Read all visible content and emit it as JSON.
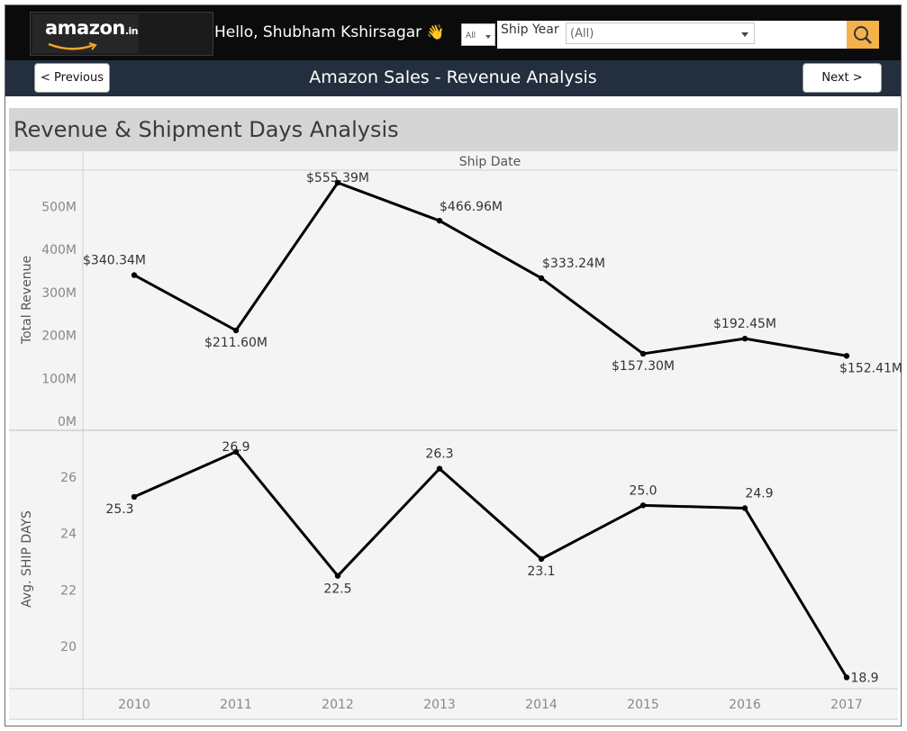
{
  "header": {
    "logo_text": "amazon",
    "logo_tld": ".in",
    "greeting": "Hello,  Shubham Kshirsagar",
    "greeting_emoji": "👋",
    "filter_all": "All",
    "ship_year_label": "Ship Year",
    "ship_year_value": "(All)",
    "search_icon": "magnifier-icon"
  },
  "nav": {
    "prev_label": "< Previous",
    "title": "Amazon Sales  - Revenue Analysis",
    "next_label": "Next >"
  },
  "colors": {
    "top_bar": "#0b0b0b",
    "nav_bar": "#232f3e",
    "search_button": "#f5b24a",
    "line": "#000000"
  },
  "dashboard": {
    "title": "Revenue & Shipment Days Analysis"
  },
  "chart_data": {
    "type": "line",
    "column_header": "Ship Date",
    "x": [
      "2010",
      "2011",
      "2012",
      "2013",
      "2014",
      "2015",
      "2016",
      "2017"
    ],
    "panels": [
      {
        "ylabel": "Total Revenue",
        "ylim": [
          0,
          570
        ],
        "yticks": [
          0,
          100,
          200,
          300,
          400,
          500
        ],
        "ytick_labels": [
          "0M",
          "100M",
          "200M",
          "300M",
          "400M",
          "500M"
        ],
        "values": [
          340.34,
          211.6,
          555.39,
          466.96,
          333.24,
          157.3,
          192.45,
          152.41
        ],
        "data_labels": [
          "$340.34M",
          "$211.60M",
          "$555.39M",
          "$466.96M",
          "$333.24M",
          "$157.30M",
          "$192.45M",
          "$152.41M"
        ]
      },
      {
        "ylabel": "Avg. SHIP DAYS",
        "ylim": [
          18.5,
          27.5
        ],
        "yticks": [
          20,
          22,
          24,
          26
        ],
        "ytick_labels": [
          "20",
          "22",
          "24",
          "26"
        ],
        "values": [
          25.3,
          26.9,
          22.5,
          26.3,
          23.1,
          25.0,
          24.9,
          18.9
        ],
        "data_labels": [
          "25.3",
          "26.9",
          "22.5",
          "26.3",
          "23.1",
          "25.0",
          "24.9",
          "18.9"
        ]
      }
    ],
    "grid": false,
    "legend": "none"
  }
}
